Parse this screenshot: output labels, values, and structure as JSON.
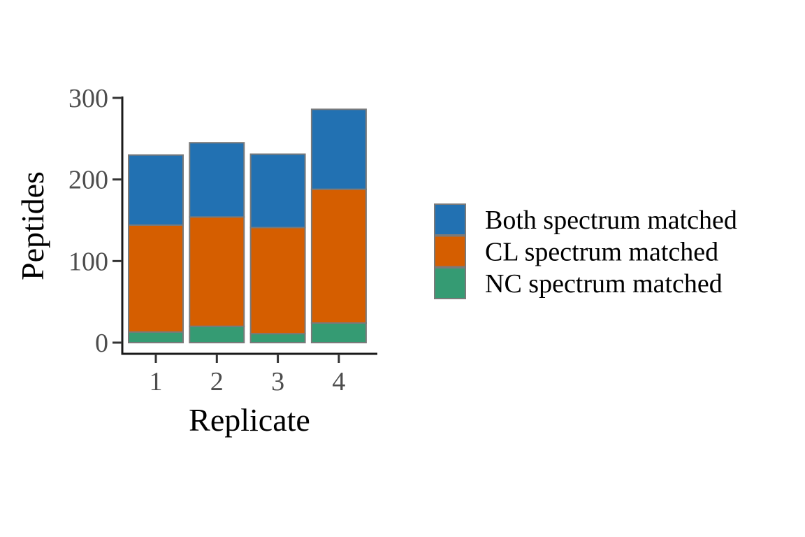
{
  "chart_data": {
    "type": "bar",
    "stacked": true,
    "title": "",
    "xlabel": "Replicate",
    "ylabel": "Peptides",
    "categories": [
      "1",
      "2",
      "3",
      "4"
    ],
    "ylim": [
      0,
      300
    ],
    "yticks": [
      0,
      100,
      200,
      300
    ],
    "grid": false,
    "legend_position": "right",
    "series": [
      {
        "name": "NC spectrum matched",
        "color": "#359B73",
        "values": [
          13,
          20,
          11,
          24
        ]
      },
      {
        "name": "CL spectrum matched",
        "color": "#D55E00",
        "values": [
          131,
          134,
          130,
          164
        ]
      },
      {
        "name": "Both spectrum matched",
        "color": "#2271B2",
        "values": [
          86,
          91,
          90,
          98
        ]
      }
    ],
    "legend_order": [
      "Both spectrum matched",
      "CL spectrum matched",
      "NC spectrum matched"
    ]
  }
}
